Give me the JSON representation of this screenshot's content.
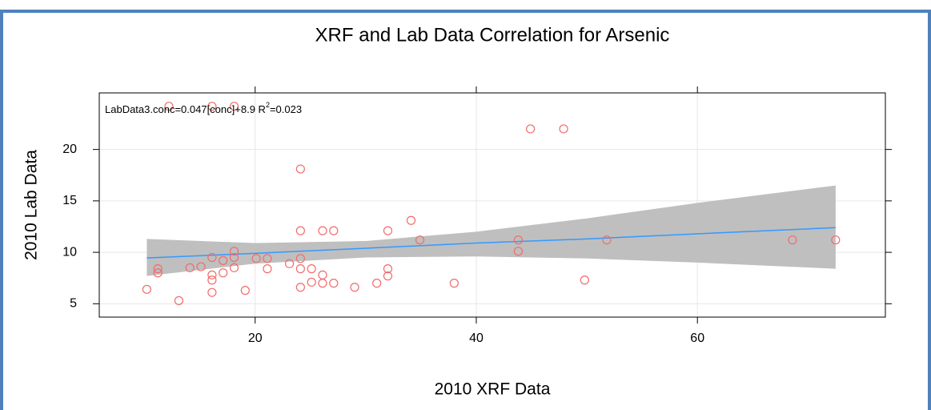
{
  "chart_data": {
    "type": "scatter",
    "title": "XRF and Lab Data Correlation for Arsenic",
    "x_label": "2010 XRF Data",
    "y_label": "2010 Lab Data",
    "annotation": {
      "text": "LabData3.conc=0.047[conc]+8.9 R",
      "superscript": "2",
      "suffix": "=0.023"
    },
    "xlim": [
      5.9,
      77
    ],
    "ylim": [
      3.7,
      25.5
    ],
    "xticks": [
      20,
      40,
      60
    ],
    "yticks": [
      5,
      10,
      15,
      20
    ],
    "grid": true,
    "series": [
      {
        "color": "#f26b6b",
        "x": [
          10.2,
          11.2,
          11.2,
          13.1,
          14.1,
          15.1,
          16.1,
          16.1,
          16.1,
          16.1,
          17.1,
          17.1,
          18.1,
          18.1,
          18.1,
          19.1,
          20.1,
          21.1,
          21.1,
          23.1,
          24.1,
          24.1,
          24.1,
          24.1,
          24.1,
          25.1,
          25.1,
          26.1,
          26.1,
          26.1,
          27.1,
          27.1,
          29.0,
          31.0,
          32.0,
          32.0,
          32.0,
          34.1,
          34.9,
          38.0,
          43.8,
          43.8,
          44.9,
          47.9,
          49.8,
          51.8,
          68.6,
          72.5,
          12.2,
          16.1,
          18.1
        ],
        "values": [
          6.4,
          8.4,
          8.0,
          5.3,
          8.5,
          8.6,
          9.5,
          7.3,
          7.8,
          6.1,
          9.2,
          8.0,
          10.1,
          8.5,
          9.5,
          6.3,
          9.4,
          9.4,
          8.4,
          8.9,
          18.1,
          12.1,
          9.4,
          8.4,
          6.6,
          8.4,
          7.1,
          12.1,
          7.8,
          7.0,
          12.1,
          7.0,
          6.6,
          7.0,
          12.1,
          8.4,
          7.7,
          13.1,
          11.2,
          7.0,
          11.2,
          10.1,
          22.0,
          22.0,
          7.3,
          11.2,
          11.2,
          11.2,
          24.2,
          24.2,
          24.2
        ]
      }
    ],
    "fit": {
      "color": "#3399ff",
      "band_color": "#bfbfbf",
      "x": [
        10.2,
        20,
        30,
        40,
        50,
        60,
        72.5
      ],
      "values": [
        9.45,
        9.9,
        10.4,
        10.9,
        11.3,
        11.8,
        12.4
      ],
      "lower": [
        7.7,
        8.9,
        9.5,
        9.6,
        9.4,
        9.0,
        8.4
      ],
      "upper": [
        11.3,
        10.9,
        11.1,
        12.0,
        13.3,
        14.8,
        16.5
      ]
    }
  }
}
